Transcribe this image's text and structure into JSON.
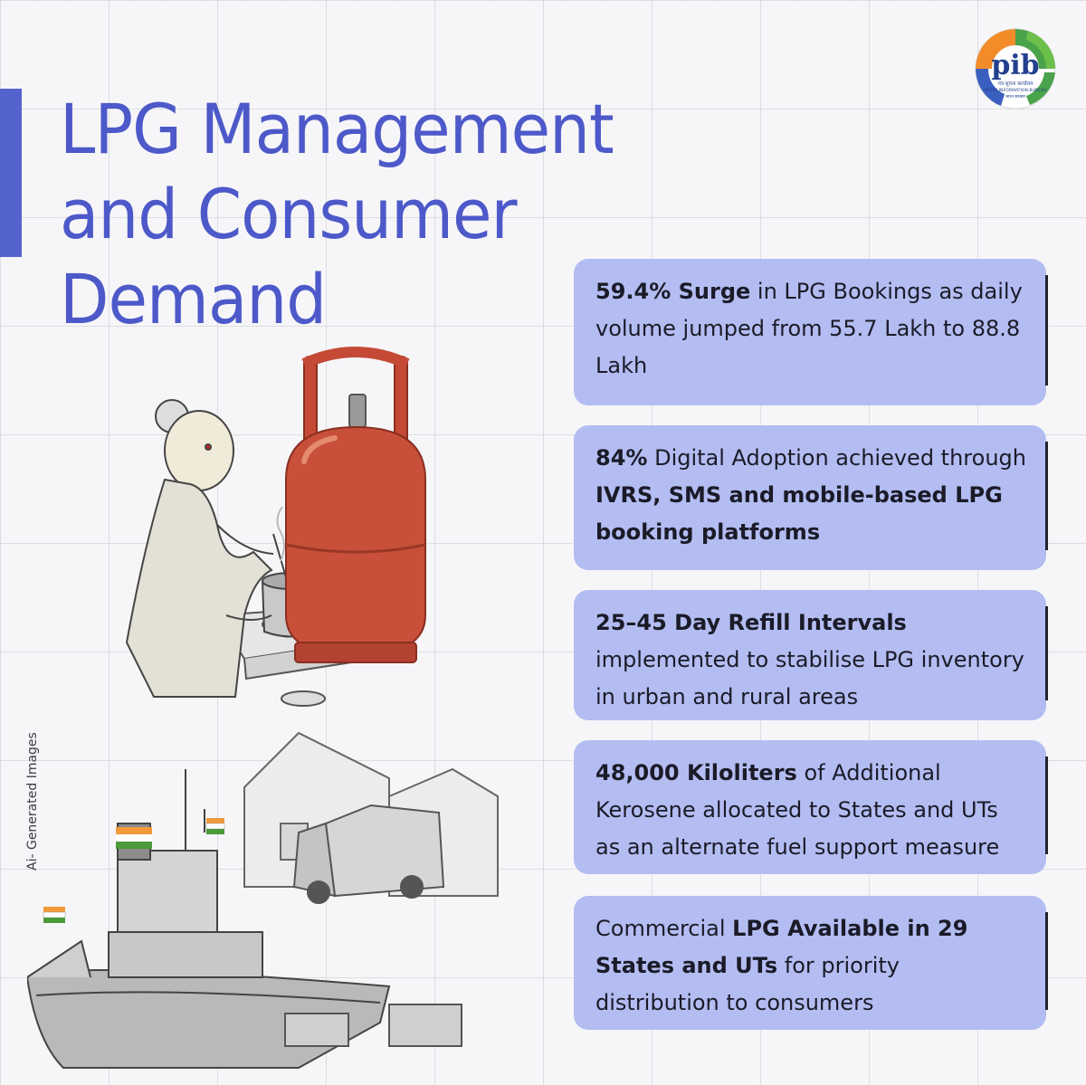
{
  "title": {
    "line1": "LPG Management",
    "line2": "and Consumer",
    "line3": "Demand"
  },
  "logo": {
    "text": "pib",
    "caption_hindi": "पत्र सूचना कार्यालय",
    "caption_english": "PRESS INFORMATION BUREAU",
    "caption_country": "भारत सरकार"
  },
  "side_note": "Ai- Generated Images",
  "cards": [
    {
      "b1": "59.4% Surge",
      "t1": " in LPG Bookings as daily volume jumped from 55.7 Lakh to 88.8 Lakh",
      "b2": "",
      "t2": ""
    },
    {
      "b1": "84%",
      "t1": " Digital Adoption achieved through ",
      "b2": "IVRS, SMS and mobile-based LPG booking platforms",
      "t2": ""
    },
    {
      "b1": "25–45 Day Refill Intervals",
      "t1": " implemented to stabilise LPG inventory in urban and rural areas",
      "b2": "",
      "t2": ""
    },
    {
      "b1": "48,000 Kiloliters",
      "t1": " of Additional Kerosene allocated to States and UTs as an alternate fuel support measure",
      "b2": "",
      "t2": ""
    },
    {
      "b1": "",
      "t1": "Commercial ",
      "b2": "LPG Available in 29 States and UTs",
      "t2": " for priority distribution to consumers"
    }
  ],
  "colors": {
    "accent": "#4d59c9",
    "card_bg": "#b3bdf2",
    "cylinder": "#c8503a"
  },
  "illustrations": [
    "woman-cooking-sketch",
    "lpg-cylinder",
    "ship-and-truck-sketch"
  ]
}
